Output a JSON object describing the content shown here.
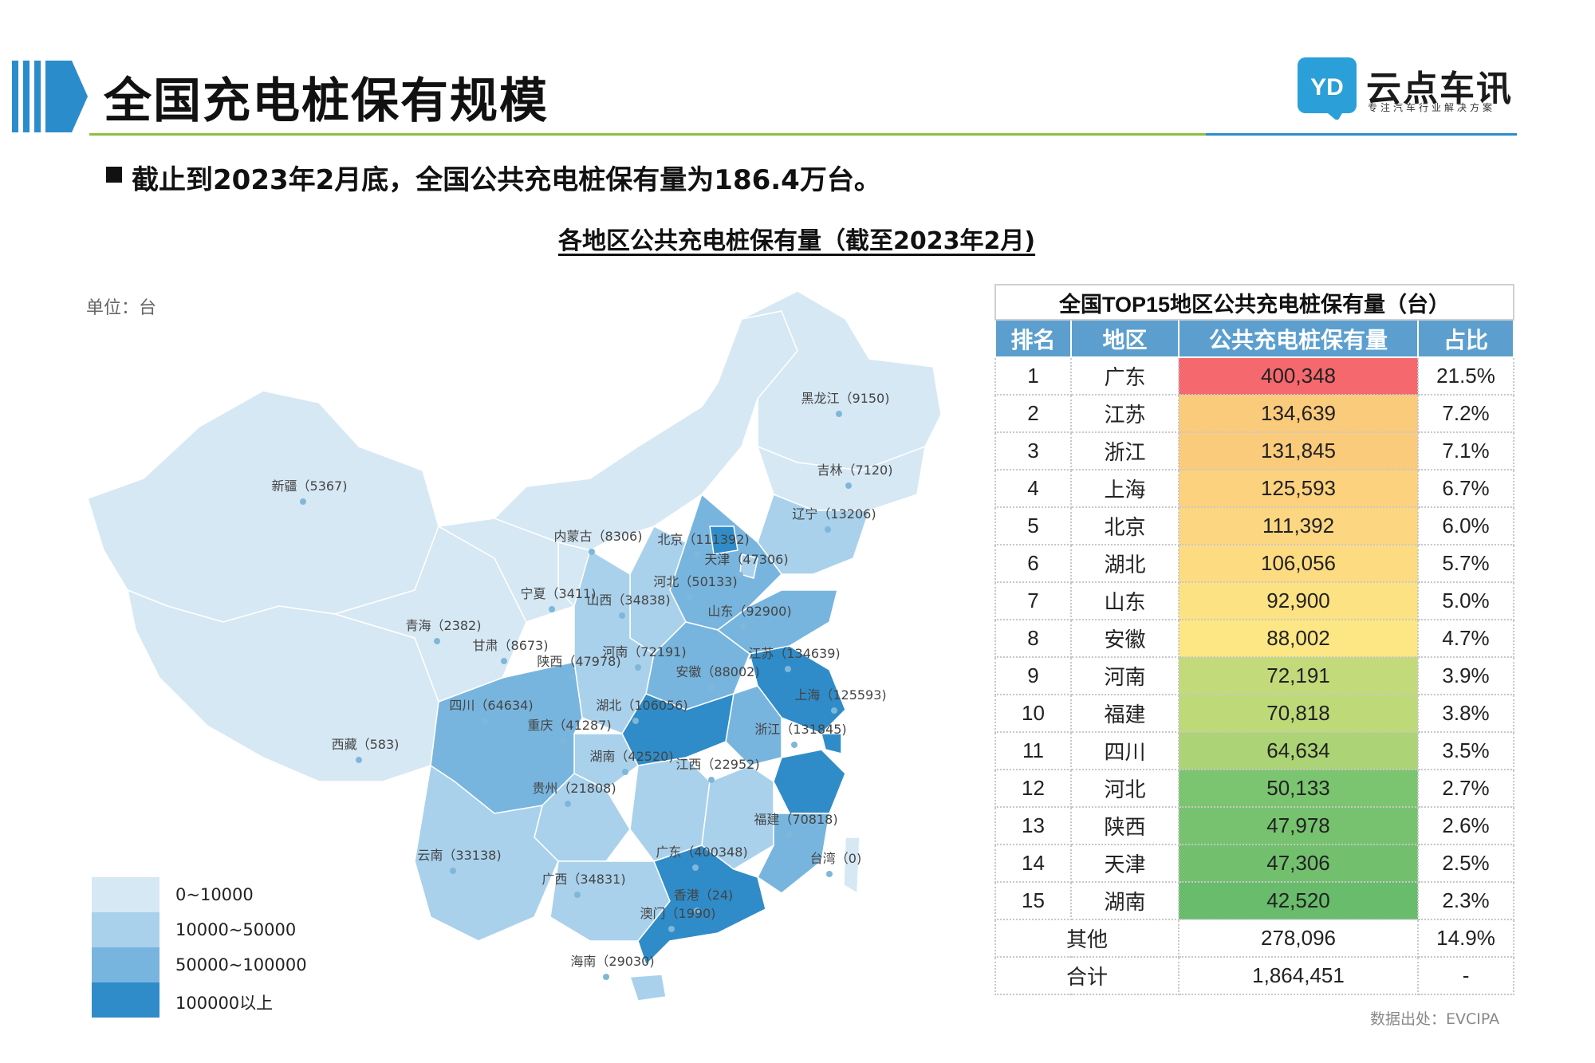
{
  "header": {
    "title": "全国充电桩保有规模",
    "logo_name": "云点车讯",
    "logo_tagline": "专注汽车行业解决方案",
    "logo_mark": "YD"
  },
  "subtitle": "截止到2023年2月底，全国公共充电桩保有量为186.4万台。",
  "map": {
    "title": "各地区公共充电桩保有量（截至2023年2月)",
    "unit_label": "单位：台",
    "legend": [
      {
        "label": "0~10000",
        "color": "#d6e8f4"
      },
      {
        "label": "10000~50000",
        "color": "#a9d1eb"
      },
      {
        "label": "50000~100000",
        "color": "#78b5de"
      },
      {
        "label": "100000以上",
        "color": "#2f8cc9"
      }
    ],
    "regions": [
      {
        "label": "黑龙江（9150)",
        "value": 9150
      },
      {
        "label": "吉林（7120)",
        "value": 7120
      },
      {
        "label": "辽宁（13206)",
        "value": 13206
      },
      {
        "label": "新疆（5367)",
        "value": 5367
      },
      {
        "label": "内蒙古（8306)",
        "value": 8306
      },
      {
        "label": "北京（111392)",
        "value": 111392
      },
      {
        "label": "天津（47306)",
        "value": 47306
      },
      {
        "label": "河北（50133)",
        "value": 50133
      },
      {
        "label": "宁夏（3411)",
        "value": 3411
      },
      {
        "label": "山西（34838)",
        "value": 34838
      },
      {
        "label": "山东（92900)",
        "value": 92900
      },
      {
        "label": "青海（2382)",
        "value": 2382
      },
      {
        "label": "甘肃（8673)",
        "value": 8673
      },
      {
        "label": "河南（72191)",
        "value": 72191
      },
      {
        "label": "江苏（134639)",
        "value": 134639
      },
      {
        "label": "陕西（47978)",
        "value": 47978
      },
      {
        "label": "安徽（88002)",
        "value": 88002
      },
      {
        "label": "上海（125593)",
        "value": 125593
      },
      {
        "label": "四川（64634)",
        "value": 64634
      },
      {
        "label": "湖北（106056)",
        "value": 106056
      },
      {
        "label": "重庆（41287)",
        "value": 41287
      },
      {
        "label": "浙江（131845)",
        "value": 131845
      },
      {
        "label": "西藏（583)",
        "value": 583
      },
      {
        "label": "湖南（42520)",
        "value": 42520
      },
      {
        "label": "江西（22952)",
        "value": 22952
      },
      {
        "label": "贵州（21808)",
        "value": 21808
      },
      {
        "label": "福建（70818)",
        "value": 70818
      },
      {
        "label": "台湾（0)",
        "value": 0
      },
      {
        "label": "云南（33138)",
        "value": 33138
      },
      {
        "label": "广东（400348)",
        "value": 400348
      },
      {
        "label": "广西（34831)",
        "value": 34831
      },
      {
        "label": "香港（24)",
        "value": 24
      },
      {
        "label": "澳门（1990)",
        "value": 1990
      },
      {
        "label": "海南（29030)",
        "value": 29030
      }
    ]
  },
  "table": {
    "caption": "全国TOP15地区公共充电桩保有量（台）",
    "headers": [
      "排名",
      "地区",
      "公共充电桩保有量",
      "占比"
    ],
    "rows": [
      {
        "rank": "1",
        "region": "广东",
        "count": "400,348",
        "share": "21.5%",
        "color": "#f4686e"
      },
      {
        "rank": "2",
        "region": "江苏",
        "count": "134,639",
        "share": "7.2%",
        "color": "#fbcb7c"
      },
      {
        "rank": "3",
        "region": "浙江",
        "count": "131,845",
        "share": "7.1%",
        "color": "#fbcb7c"
      },
      {
        "rank": "4",
        "region": "上海",
        "count": "125,593",
        "share": "6.7%",
        "color": "#fcd27e"
      },
      {
        "rank": "5",
        "region": "北京",
        "count": "111,392",
        "share": "6.0%",
        "color": "#fcd680"
      },
      {
        "rank": "6",
        "region": "湖北",
        "count": "106,056",
        "share": "5.7%",
        "color": "#fddb81"
      },
      {
        "rank": "7",
        "region": "山东",
        "count": "92,900",
        "share": "5.0%",
        "color": "#fde283"
      },
      {
        "rank": "8",
        "region": "安徽",
        "count": "88,002",
        "share": "4.7%",
        "color": "#fde784"
      },
      {
        "rank": "9",
        "region": "河南",
        "count": "72,191",
        "share": "3.9%",
        "color": "#c3da7a"
      },
      {
        "rank": "10",
        "region": "福建",
        "count": "70,818",
        "share": "3.8%",
        "color": "#bed978"
      },
      {
        "rank": "11",
        "region": "四川",
        "count": "64,634",
        "share": "3.5%",
        "color": "#acd375"
      },
      {
        "rank": "12",
        "region": "河北",
        "count": "50,133",
        "share": "2.7%",
        "color": "#7bc470"
      },
      {
        "rank": "13",
        "region": "陕西",
        "count": "47,978",
        "share": "2.6%",
        "color": "#76c26f"
      },
      {
        "rank": "14",
        "region": "天津",
        "count": "47,306",
        "share": "2.5%",
        "color": "#72c06e"
      },
      {
        "rank": "15",
        "region": "湖南",
        "count": "42,520",
        "share": "2.3%",
        "color": "#68bc6c"
      }
    ],
    "others": {
      "label": "其他",
      "count": "278,096",
      "share": "14.9%"
    },
    "total": {
      "label": "合计",
      "count": "1,864,451",
      "share": "-"
    }
  },
  "source": "数据出处：EVCIPA"
}
